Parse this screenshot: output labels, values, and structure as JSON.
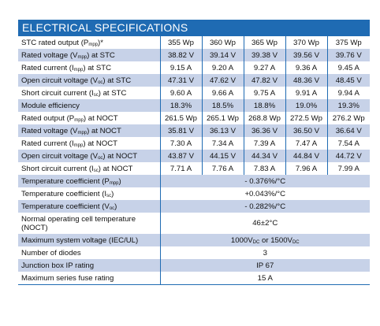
{
  "title": "ELECTRICAL SPECIFICATIONS",
  "rows": [
    {
      "pre": "STC rated output (P",
      "sub": "mpp",
      "post": ")*",
      "values": [
        "355 Wp",
        "360 Wp",
        "365 Wp",
        "370 Wp",
        "375 Wp"
      ]
    },
    {
      "pre": "Rated voltage (V",
      "sub": "mpp",
      "post": ") at STC",
      "values": [
        "38.82 V",
        "39.14 V",
        "39.38 V",
        "39.56 V",
        "39.76 V"
      ]
    },
    {
      "pre": "Rated current (I",
      "sub": "mpp",
      "post": ") at STC",
      "values": [
        "9.15 A",
        "9.20 A",
        "9.27 A",
        "9.36 A",
        "9.45 A"
      ]
    },
    {
      "pre": "Open circuit voltage (V",
      "sub": "oc",
      "post": ") at STC",
      "values": [
        "47.31 V",
        "47.62 V",
        "47.82 V",
        "48.36 V",
        "48.45 V"
      ]
    },
    {
      "pre": "Short circuit current (I",
      "sub": "sc",
      "post": ") at STC",
      "values": [
        "9.60 A",
        "9.66 A",
        "9.75 A",
        "9.91 A",
        "9.94 A"
      ]
    },
    {
      "pre": "Module efficiency",
      "sub": "",
      "post": "",
      "values": [
        "18.3%",
        "18.5%",
        "18.8%",
        "19.0%",
        "19.3%"
      ]
    },
    {
      "pre": "Rated output (P",
      "sub": "mpp",
      "post": ") at NOCT",
      "values": [
        "261.5 Wp",
        "265.1 Wp",
        "268.8 Wp",
        "272.5 Wp",
        "276.2 Wp"
      ]
    },
    {
      "pre": "Rated voltage (V",
      "sub": "mpp",
      "post": ") at NOCT",
      "values": [
        "35.81 V",
        "36.13 V",
        "36.36 V",
        "36.50 V",
        "36.64 V"
      ]
    },
    {
      "pre": "Rated current (I",
      "sub": "mpp",
      "post": ") at NOCT",
      "values": [
        "7.30 A",
        "7.34 A",
        "7.39 A",
        "7.47 A",
        "7.54 A"
      ]
    },
    {
      "pre": "Open circuit voltage (V",
      "sub": "oc",
      "post": ") at NOCT",
      "values": [
        "43.87 V",
        "44.15 V",
        "44.34 V",
        "44.84 V",
        "44.72 V"
      ]
    },
    {
      "pre": "Short circuit current (I",
      "sub": "sc",
      "post": ") at NOCT",
      "values": [
        "7.71 A",
        "7.76 A",
        "7.83 A",
        "7.96 A",
        "7.99 A"
      ]
    }
  ],
  "spans": [
    {
      "pre": "Temperature coefficient (P",
      "sub": "mpp",
      "post": ")",
      "value": "- 0.376%/°C"
    },
    {
      "pre": "Temperature coefficient (I",
      "sub": "sc",
      "post": ")",
      "value": "+0.043%/°C"
    },
    {
      "pre": "Temperature coefficient (V",
      "sub": "oc",
      "post": ")",
      "value": "- 0.282%/°C"
    },
    {
      "pre": "Normal operating cell temperature (NOCT)",
      "sub": "",
      "post": "",
      "value": "46±2°C"
    },
    {
      "pre": "Maximum system voltage (IEC/UL)",
      "sub": "",
      "post": "",
      "value": ""
    },
    {
      "pre": "Number of diodes",
      "sub": "",
      "post": "",
      "value": "3"
    },
    {
      "pre": "Junction box IP rating",
      "sub": "",
      "post": "",
      "value": "IP 67"
    },
    {
      "pre": "Maximum series fuse rating",
      "sub": "",
      "post": "",
      "value": "15 A"
    }
  ],
  "max_voltage": {
    "v1": "1000V",
    "sub1": "DC",
    "mid": " or ",
    "v2": "1500V",
    "sub2": "DC"
  }
}
